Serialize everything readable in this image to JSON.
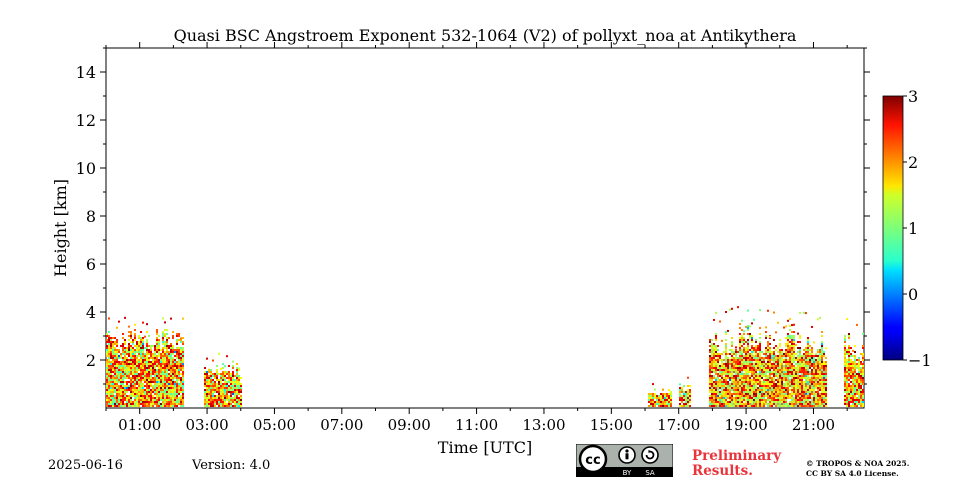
{
  "chart_data": {
    "type": "heatmap",
    "title": "Quasi BSC Angstroem Exponent 532-1064 (V2) of pollyxt_noa at Antikythera",
    "xlabel": "Time [UTC]",
    "ylabel": "Height [km]",
    "xlim": [
      0.0,
      22.5
    ],
    "ylim": [
      0.0,
      15.0
    ],
    "x_ticks": [
      1,
      3,
      5,
      7,
      9,
      11,
      13,
      15,
      17,
      19,
      21
    ],
    "x_tick_labels": [
      "01:00",
      "03:00",
      "05:00",
      "07:00",
      "09:00",
      "11:00",
      "13:00",
      "15:00",
      "17:00",
      "19:00",
      "21:00"
    ],
    "y_ticks": [
      2,
      4,
      6,
      8,
      10,
      12,
      14
    ],
    "y_tick_labels": [
      "2",
      "4",
      "6",
      "8",
      "10",
      "12",
      "14"
    ],
    "colorbar": {
      "min": -1,
      "max": 3,
      "ticks": [
        -1,
        0,
        1,
        2,
        3
      ],
      "tick_labels": [
        "−1",
        "0",
        "1",
        "2",
        "3"
      ],
      "colormap": "jet"
    },
    "data_blocks": [
      {
        "t_start": 0.0,
        "t_end": 2.3,
        "top_km": 2.8,
        "max_km": 3.6
      },
      {
        "t_start": 2.9,
        "t_end": 4.0,
        "top_km": 1.5,
        "max_km": 2.0
      },
      {
        "t_start": 16.1,
        "t_end": 16.8,
        "top_km": 0.6,
        "max_km": 0.8
      },
      {
        "t_start": 17.0,
        "t_end": 17.35,
        "top_km": 0.9,
        "max_km": 1.1
      },
      {
        "t_start": 17.9,
        "t_end": 21.4,
        "top_km": 2.6,
        "max_km": 4.0
      },
      {
        "t_start": 21.9,
        "t_end": 22.5,
        "top_km": 2.4,
        "max_km": 3.5
      }
    ],
    "value_range_in_layer": [
      0.8,
      2.8
    ]
  },
  "footer": {
    "date": "2025-06-16",
    "version": "Version: 4.0",
    "preliminary_line1": "Preliminary",
    "preliminary_line2": "Results.",
    "copyright_line1": "© TROPOS & NOA 2025.",
    "copyright_line2": "CC BY SA 4.0 License.",
    "cc_by": "BY",
    "cc_sa": "SA",
    "cc_mark": "cc"
  }
}
